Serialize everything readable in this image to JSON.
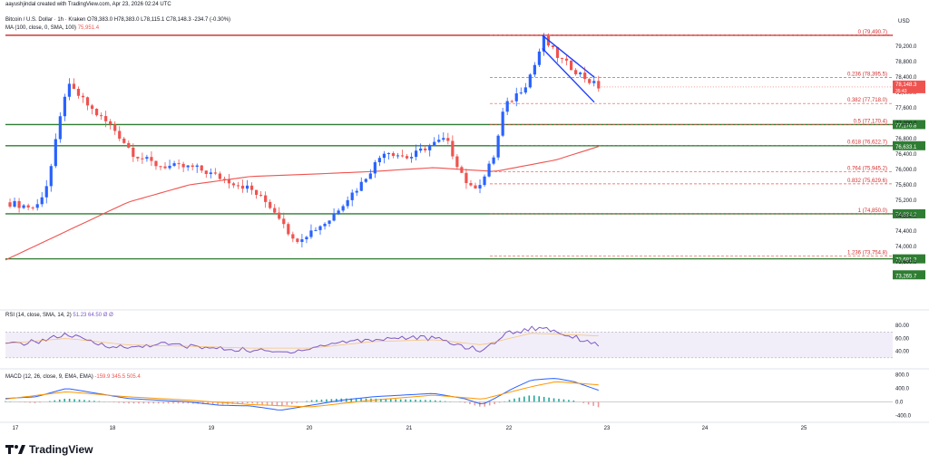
{
  "header": {
    "watermark": "aayushjindal created with TradingView.com, Apr 23, 2026 02:24 UTC",
    "symbol": "Bitcoin / U.S. Dollar · 1h · Kraken",
    "ohlc": "O78,383.0  H78,383.0  L78,115.1  C78,148.3  -234.7 (-0.30%)",
    "ma_label": "MA (100, close, 0, SMA, 100)",
    "ma_value": "75,951.4",
    "currency": "USD"
  },
  "footer": {
    "brand": "TradingView"
  },
  "colors": {
    "up": "#2962ff",
    "down": "#ef5350",
    "ma": "#ef5350",
    "support": "#2e7d32",
    "resistance": "#c62828",
    "channel": "#1e40ff",
    "rsi": "#7e57c2",
    "macd": "#2962ff",
    "signal": "#ff9800",
    "fib": "#ef5350"
  },
  "chart_data": {
    "type": "candlestick",
    "price_range": [
      72800,
      79700
    ],
    "x_axis": {
      "labels": [
        "17",
        "18",
        "19",
        "20",
        "21",
        "22",
        "23",
        "24",
        "25"
      ]
    },
    "y_axis": {
      "ticks": [
        "79,200.0",
        "78,800.0",
        "78,400.0",
        "78,000.0",
        "77,600.0",
        "77,200.0",
        "76,800.0",
        "76,400.0",
        "76,000.0",
        "75,600.0",
        "75,200.0",
        "74,800.0",
        "74,400.0",
        "74,000.0",
        "73,600.0"
      ]
    },
    "current_price": {
      "value": "78,148.3",
      "sub": "35:43"
    },
    "horizontal_lines": [
      {
        "price": 79490,
        "kind": "resistance",
        "label": ""
      },
      {
        "price": 77170,
        "kind": "support",
        "label": "77,170.8"
      },
      {
        "price": 76620,
        "kind": "support",
        "label": "76,633.1"
      },
      {
        "price": 74850,
        "kind": "support",
        "label": "74,834.2"
      },
      {
        "price": 73680,
        "kind": "support",
        "label": "73,681.3"
      }
    ],
    "extra_tags": [
      {
        "price": 73265,
        "label": "73,265.7"
      }
    ],
    "fib_levels": [
      {
        "label": "0 (79,490.7)",
        "price": 79490.7
      },
      {
        "label": "0.236 (78,395.5)",
        "price": 78395.5
      },
      {
        "label": "0.382 (77,718.0)",
        "price": 77718.0
      },
      {
        "label": "0.5 (77,170.4)",
        "price": 77170.4
      },
      {
        "label": "0.618 (76,622.7)",
        "price": 76622.7
      },
      {
        "label": "0.764 (75,945.2)",
        "price": 75945.2
      },
      {
        "label": "0.832 (75,629.6)",
        "price": 75629.6
      },
      {
        "label": "1 (74,850.0)",
        "price": 74850.0
      },
      {
        "label": "1.236 (73,754.8)",
        "price": 73754.8
      }
    ],
    "channel": {
      "upper": [
        [
          0.878,
          79490
        ],
        [
          0.963,
          78400
        ]
      ],
      "lower": [
        [
          0.878,
          79150
        ],
        [
          0.963,
          77750
        ]
      ]
    },
    "candle_anchors": [
      [
        0.0,
        75150
      ],
      [
        0.05,
        75000
      ],
      [
        0.07,
        75700
      ],
      [
        0.1,
        78200
      ],
      [
        0.115,
        78000
      ],
      [
        0.145,
        77500
      ],
      [
        0.175,
        77100
      ],
      [
        0.21,
        76400
      ],
      [
        0.25,
        76100
      ],
      [
        0.31,
        76050
      ],
      [
        0.35,
        75800
      ],
      [
        0.4,
        75500
      ],
      [
        0.43,
        75100
      ],
      [
        0.455,
        74650
      ],
      [
        0.47,
        74150
      ],
      [
        0.49,
        74300
      ],
      [
        0.53,
        74700
      ],
      [
        0.55,
        75100
      ],
      [
        0.58,
        75600
      ],
      [
        0.62,
        76500
      ],
      [
        0.66,
        76300
      ],
      [
        0.69,
        76600
      ],
      [
        0.72,
        76800
      ],
      [
        0.74,
        76100
      ],
      [
        0.76,
        75500
      ],
      [
        0.78,
        75700
      ],
      [
        0.8,
        76400
      ],
      [
        0.815,
        77600
      ],
      [
        0.85,
        78200
      ],
      [
        0.865,
        78700
      ],
      [
        0.88,
        79400
      ],
      [
        0.905,
        78900
      ],
      [
        0.93,
        78600
      ],
      [
        0.955,
        78300
      ],
      [
        0.97,
        78150
      ]
    ],
    "ma_anchors": [
      [
        0.0,
        73650
      ],
      [
        0.1,
        74400
      ],
      [
        0.2,
        75150
      ],
      [
        0.3,
        75600
      ],
      [
        0.4,
        75820
      ],
      [
        0.5,
        75880
      ],
      [
        0.6,
        75950
      ],
      [
        0.7,
        76050
      ],
      [
        0.8,
        75950
      ],
      [
        0.9,
        76250
      ],
      [
        0.97,
        76600
      ]
    ],
    "rsi": {
      "label": "RSI (14, close, SMA, 14, 2)",
      "values_text": "51.23  64.50  Ø  Ø",
      "ticks": [
        "80.00",
        "60.00",
        "40.00"
      ],
      "range": [
        20,
        90
      ],
      "band": [
        30,
        70
      ],
      "anchors": [
        [
          0.0,
          50
        ],
        [
          0.05,
          55
        ],
        [
          0.1,
          66
        ],
        [
          0.15,
          52
        ],
        [
          0.2,
          45
        ],
        [
          0.25,
          52
        ],
        [
          0.3,
          48
        ],
        [
          0.35,
          44
        ],
        [
          0.4,
          42
        ],
        [
          0.45,
          38
        ],
        [
          0.5,
          45
        ],
        [
          0.55,
          55
        ],
        [
          0.6,
          58
        ],
        [
          0.65,
          62
        ],
        [
          0.7,
          60
        ],
        [
          0.75,
          48
        ],
        [
          0.78,
          40
        ],
        [
          0.8,
          55
        ],
        [
          0.82,
          68
        ],
        [
          0.86,
          75
        ],
        [
          0.88,
          77
        ],
        [
          0.92,
          65
        ],
        [
          0.97,
          51
        ]
      ],
      "signal_anchors": [
        [
          0.0,
          52
        ],
        [
          0.1,
          60
        ],
        [
          0.2,
          50
        ],
        [
          0.3,
          48
        ],
        [
          0.4,
          45
        ],
        [
          0.5,
          45
        ],
        [
          0.6,
          55
        ],
        [
          0.7,
          58
        ],
        [
          0.78,
          50
        ],
        [
          0.86,
          68
        ],
        [
          0.97,
          64
        ]
      ]
    },
    "macd": {
      "label": "MACD (12, 26, close, 9, EMA, EMA)",
      "values_text": "-159.9  345.5  505.4",
      "ticks": [
        "800.0",
        "400.0",
        "0.0",
        "-400.0"
      ],
      "range": [
        -500,
        900
      ],
      "macd_anchors": [
        [
          0.0,
          100
        ],
        [
          0.05,
          150
        ],
        [
          0.1,
          400
        ],
        [
          0.15,
          250
        ],
        [
          0.2,
          100
        ],
        [
          0.25,
          50
        ],
        [
          0.3,
          0
        ],
        [
          0.35,
          -100
        ],
        [
          0.4,
          -120
        ],
        [
          0.45,
          -250
        ],
        [
          0.5,
          -100
        ],
        [
          0.55,
          50
        ],
        [
          0.6,
          150
        ],
        [
          0.65,
          200
        ],
        [
          0.7,
          250
        ],
        [
          0.75,
          100
        ],
        [
          0.78,
          -80
        ],
        [
          0.8,
          100
        ],
        [
          0.83,
          400
        ],
        [
          0.86,
          650
        ],
        [
          0.9,
          700
        ],
        [
          0.93,
          600
        ],
        [
          0.97,
          345
        ]
      ],
      "signal_anchors": [
        [
          0.0,
          80
        ],
        [
          0.1,
          300
        ],
        [
          0.2,
          150
        ],
        [
          0.3,
          50
        ],
        [
          0.4,
          -80
        ],
        [
          0.5,
          -150
        ],
        [
          0.6,
          50
        ],
        [
          0.7,
          200
        ],
        [
          0.78,
          80
        ],
        [
          0.86,
          450
        ],
        [
          0.9,
          600
        ],
        [
          0.97,
          505
        ]
      ]
    }
  }
}
